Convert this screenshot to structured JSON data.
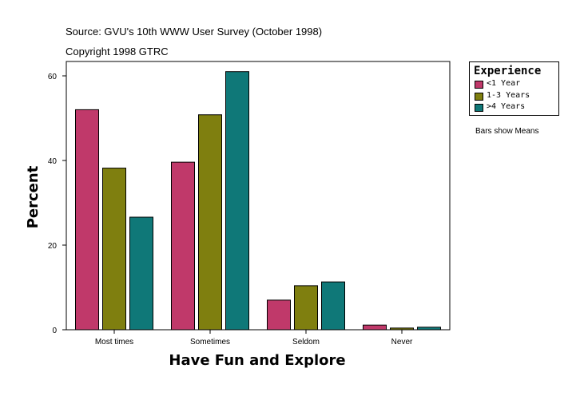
{
  "notes": {
    "source": "Source: GVU's 10th WWW User Survey (October 1998)",
    "copyright": "Copyright 1998 GTRC",
    "bars_show": "Bars show Means"
  },
  "chart_data": {
    "type": "bar",
    "title": "",
    "xlabel": "Have Fun and Explore",
    "ylabel": "Percent",
    "categories": [
      "Most times",
      "Sometimes",
      "Seldom",
      "Never"
    ],
    "series": [
      {
        "name": "<1 Year",
        "color": "#c0396a",
        "values": [
          52.0,
          39.6,
          7.0,
          1.1
        ]
      },
      {
        "name": "1-3 Years",
        "color": "#7f7f0f",
        "values": [
          38.2,
          50.8,
          10.4,
          0.4
        ]
      },
      {
        "name": ">4 Years",
        "color": "#0f7878",
        "values": [
          26.6,
          61.0,
          11.3,
          0.6
        ]
      }
    ],
    "ylim": [
      0,
      65
    ],
    "yticks": [
      0,
      20,
      40,
      60
    ],
    "legend": {
      "title": "Experience",
      "placement": "right"
    },
    "grid": false
  }
}
